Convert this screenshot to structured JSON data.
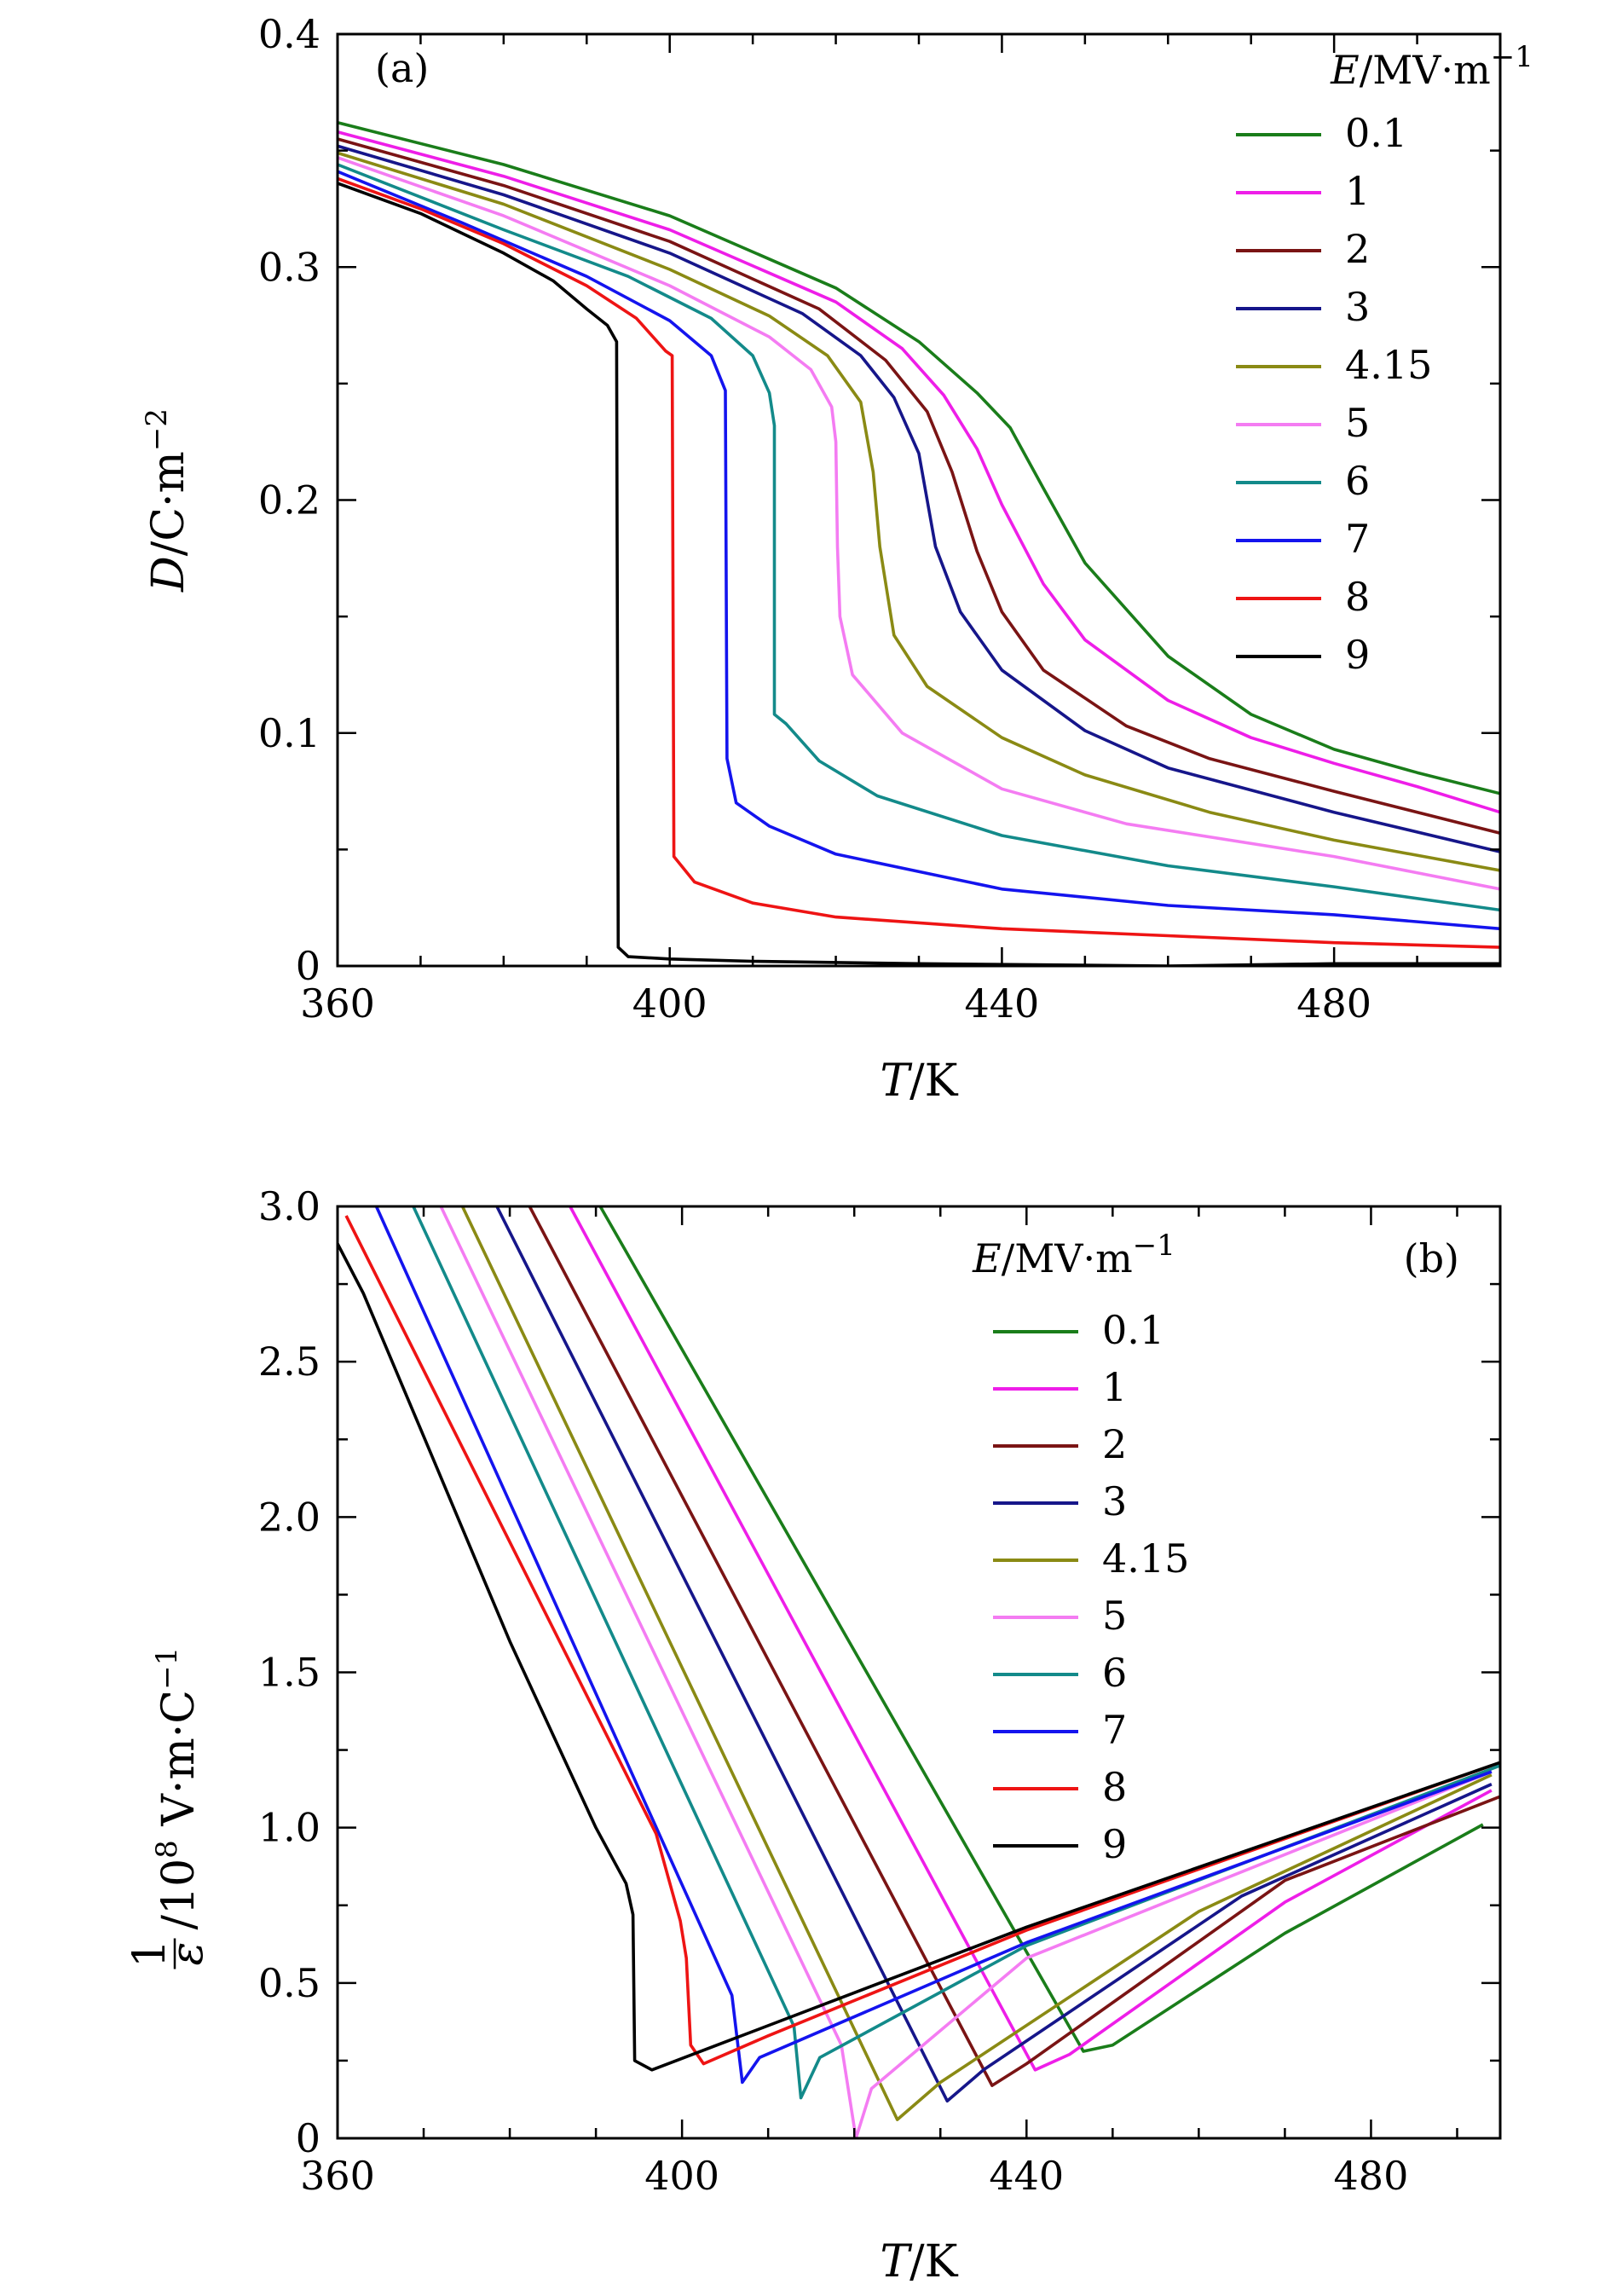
{
  "chart_data": [
    {
      "type": "line",
      "panel_label": "(a)",
      "xlabel": {
        "var": "T",
        "unit": "/K"
      },
      "ylabel": {
        "var": "D",
        "unit": "/C·m",
        "unit_sup": "−2"
      },
      "xlim": [
        360,
        500
      ],
      "ylim": [
        0,
        0.4
      ],
      "xticks": [
        360,
        400,
        440,
        480
      ],
      "yticks": [
        0,
        0.1,
        0.2,
        0.3,
        0.4
      ],
      "xtick_labels": [
        "360",
        "400",
        "440",
        "480"
      ],
      "ytick_labels": [
        "0",
        "0.1",
        "0.2",
        "0.3",
        "0.4"
      ],
      "legend_title": {
        "var": "E",
        "unit": "/MV·m",
        "unit_sup": "−1"
      },
      "legend_position": "top-right",
      "series": [
        {
          "name": "0.1",
          "color": "#1a7d1a",
          "points": [
            [
              360,
              0.362
            ],
            [
              380,
              0.344
            ],
            [
              400,
              0.322
            ],
            [
              420,
              0.291
            ],
            [
              430,
              0.268
            ],
            [
              437,
              0.246
            ],
            [
              441,
              0.231
            ],
            [
              445,
              0.205
            ],
            [
              450,
              0.173
            ],
            [
              460,
              0.133
            ],
            [
              470,
              0.108
            ],
            [
              480,
              0.093
            ],
            [
              490,
              0.083
            ],
            [
              500,
              0.074
            ]
          ]
        },
        {
          "name": "1",
          "color": "#ee1ee8",
          "points": [
            [
              360,
              0.358
            ],
            [
              380,
              0.339
            ],
            [
              400,
              0.316
            ],
            [
              420,
              0.285
            ],
            [
              428,
              0.265
            ],
            [
              433,
              0.245
            ],
            [
              437,
              0.222
            ],
            [
              440,
              0.198
            ],
            [
              445,
              0.164
            ],
            [
              450,
              0.14
            ],
            [
              460,
              0.114
            ],
            [
              470,
              0.098
            ],
            [
              480,
              0.087
            ],
            [
              490,
              0.077
            ],
            [
              500,
              0.066
            ]
          ]
        },
        {
          "name": "2",
          "color": "#7a1414",
          "points": [
            [
              360,
              0.355
            ],
            [
              380,
              0.335
            ],
            [
              400,
              0.311
            ],
            [
              418,
              0.282
            ],
            [
              426,
              0.26
            ],
            [
              431,
              0.238
            ],
            [
              434,
              0.212
            ],
            [
              437,
              0.178
            ],
            [
              440,
              0.152
            ],
            [
              445,
              0.127
            ],
            [
              455,
              0.103
            ],
            [
              465,
              0.089
            ],
            [
              480,
              0.075
            ],
            [
              500,
              0.057
            ]
          ]
        },
        {
          "name": "3",
          "color": "#16168a",
          "points": [
            [
              360,
              0.352
            ],
            [
              380,
              0.331
            ],
            [
              400,
              0.306
            ],
            [
              416,
              0.28
            ],
            [
              423,
              0.262
            ],
            [
              427,
              0.244
            ],
            [
              430,
              0.22
            ],
            [
              432,
              0.18
            ],
            [
              435,
              0.152
            ],
            [
              440,
              0.127
            ],
            [
              450,
              0.101
            ],
            [
              460,
              0.085
            ],
            [
              480,
              0.066
            ],
            [
              500,
              0.049
            ]
          ]
        },
        {
          "name": "4.15",
          "color": "#8a8a14",
          "points": [
            [
              360,
              0.349
            ],
            [
              380,
              0.327
            ],
            [
              400,
              0.299
            ],
            [
              412,
              0.279
            ],
            [
              419,
              0.262
            ],
            [
              423,
              0.242
            ],
            [
              424.5,
              0.212
            ],
            [
              425.3,
              0.18
            ],
            [
              427,
              0.142
            ],
            [
              431,
              0.12
            ],
            [
              440,
              0.098
            ],
            [
              450,
              0.082
            ],
            [
              465,
              0.066
            ],
            [
              480,
              0.054
            ],
            [
              500,
              0.041
            ]
          ]
        },
        {
          "name": "5",
          "color": "#f47cf2",
          "points": [
            [
              360,
              0.347
            ],
            [
              380,
              0.322
            ],
            [
              400,
              0.292
            ],
            [
              412,
              0.27
            ],
            [
              417,
              0.256
            ],
            [
              419.5,
              0.24
            ],
            [
              420,
              0.225
            ],
            [
              420.2,
              0.18
            ],
            [
              420.5,
              0.15
            ],
            [
              422,
              0.125
            ],
            [
              428,
              0.1
            ],
            [
              440,
              0.076
            ],
            [
              455,
              0.061
            ],
            [
              480,
              0.047
            ],
            [
              500,
              0.033
            ]
          ]
        },
        {
          "name": "6",
          "color": "#138a8a",
          "points": [
            [
              360,
              0.344
            ],
            [
              380,
              0.316
            ],
            [
              395,
              0.296
            ],
            [
              405,
              0.278
            ],
            [
              410,
              0.262
            ],
            [
              412,
              0.246
            ],
            [
              412.6,
              0.232
            ],
            [
              412.6,
              0.108
            ],
            [
              414,
              0.104
            ],
            [
              418,
              0.088
            ],
            [
              425,
              0.073
            ],
            [
              440,
              0.056
            ],
            [
              460,
              0.043
            ],
            [
              480,
              0.034
            ],
            [
              500,
              0.024
            ]
          ]
        },
        {
          "name": "7",
          "color": "#1414ee",
          "points": [
            [
              360,
              0.341
            ],
            [
              375,
              0.319
            ],
            [
              390,
              0.296
            ],
            [
              400,
              0.277
            ],
            [
              405,
              0.262
            ],
            [
              406.7,
              0.247
            ],
            [
              406.9,
              0.089
            ],
            [
              408,
              0.07
            ],
            [
              412,
              0.06
            ],
            [
              420,
              0.048
            ],
            [
              440,
              0.033
            ],
            [
              460,
              0.026
            ],
            [
              480,
              0.022
            ],
            [
              500,
              0.016
            ]
          ]
        },
        {
          "name": "8",
          "color": "#ee1414",
          "points": [
            [
              360,
              0.338
            ],
            [
              370,
              0.325
            ],
            [
              380,
              0.31
            ],
            [
              390,
              0.292
            ],
            [
              396,
              0.278
            ],
            [
              399.5,
              0.264
            ],
            [
              400.3,
              0.262
            ],
            [
              400.5,
              0.047
            ],
            [
              403,
              0.036
            ],
            [
              410,
              0.027
            ],
            [
              420,
              0.021
            ],
            [
              440,
              0.016
            ],
            [
              460,
              0.013
            ],
            [
              480,
              0.01
            ],
            [
              500,
              0.008
            ]
          ]
        },
        {
          "name": "9",
          "color": "#000000",
          "points": [
            [
              360,
              0.336
            ],
            [
              370,
              0.323
            ],
            [
              380,
              0.306
            ],
            [
              386,
              0.294
            ],
            [
              390,
              0.282
            ],
            [
              392.5,
              0.275
            ],
            [
              393.6,
              0.268
            ],
            [
              393.8,
              0.008
            ],
            [
              395,
              0.004
            ],
            [
              400,
              0.003
            ],
            [
              410,
              0.002
            ],
            [
              430,
              0.001
            ],
            [
              460,
              0.0
            ],
            [
              480,
              0.001
            ],
            [
              500,
              0.001
            ]
          ]
        }
      ]
    },
    {
      "type": "line",
      "panel_label": "(b)",
      "xlabel": {
        "var": "T",
        "unit": "/K"
      },
      "ylabel": {
        "frac_num": "1",
        "frac_den": "ε",
        "unit": "/10",
        "unit_sup": "8",
        "unit_rest": " V·m·C",
        "unit_sup2": "−1"
      },
      "xlim": [
        360,
        495
      ],
      "ylim": [
        0,
        3.0
      ],
      "xticks": [
        360,
        400,
        440,
        480
      ],
      "yticks": [
        0,
        0.5,
        1.0,
        1.5,
        2.0,
        2.5,
        3.0
      ],
      "xtick_labels": [
        "360",
        "400",
        "440",
        "480"
      ],
      "ytick_labels": [
        "0",
        "0.5",
        "1.0",
        "1.5",
        "2.0",
        "2.5",
        "3.0"
      ],
      "legend_title": {
        "var": "E",
        "unit": "/MV·m",
        "unit_sup": "−1"
      },
      "legend_position": "top-right",
      "series": [
        {
          "name": "0.1",
          "color": "#1a7d1a",
          "points": [
            [
              390.5,
              3.0
            ],
            [
              446.6,
              0.28
            ],
            [
              450,
              0.3
            ],
            [
              470,
              0.66
            ],
            [
              493,
              1.01
            ]
          ]
        },
        {
          "name": "1",
          "color": "#ee1ee8",
          "points": [
            [
              387.0,
              3.0
            ],
            [
              441.0,
              0.22
            ],
            [
              445,
              0.27
            ],
            [
              470,
              0.76
            ],
            [
              494,
              1.12
            ]
          ]
        },
        {
          "name": "2",
          "color": "#7a1414",
          "points": [
            [
              382.3,
              3.0
            ],
            [
              436.0,
              0.17
            ],
            [
              440,
              0.24
            ],
            [
              470,
              0.83
            ],
            [
              495,
              1.1
            ]
          ]
        },
        {
          "name": "3",
          "color": "#16168a",
          "points": [
            [
              378.5,
              3.0
            ],
            [
              430.8,
              0.12
            ],
            [
              435,
              0.22
            ],
            [
              465,
              0.78
            ],
            [
              494,
              1.14
            ]
          ]
        },
        {
          "name": "4.15",
          "color": "#8a8a14",
          "points": [
            [
              374.5,
              3.0
            ],
            [
              425.0,
              0.06
            ],
            [
              430,
              0.18
            ],
            [
              460,
              0.73
            ],
            [
              494,
              1.17
            ]
          ]
        },
        {
          "name": "5",
          "color": "#f47cf2",
          "points": [
            [
              372.0,
              3.0
            ],
            [
              418.5,
              0.3
            ],
            [
              420.2,
              0.0
            ],
            [
              422,
              0.16
            ],
            [
              440,
              0.58
            ],
            [
              494,
              1.18
            ]
          ]
        },
        {
          "name": "6",
          "color": "#138a8a",
          "points": [
            [
              368.8,
              3.0
            ],
            [
              413.0,
              0.36
            ],
            [
              413.8,
              0.13
            ],
            [
              416,
              0.26
            ],
            [
              440,
              0.62
            ],
            [
              495,
              1.2
            ]
          ]
        },
        {
          "name": "7",
          "color": "#1414ee",
          "points": [
            [
              364.5,
              3.0
            ],
            [
              405.8,
              0.46
            ],
            [
              407.0,
              0.18
            ],
            [
              409,
              0.26
            ],
            [
              440,
              0.63
            ],
            [
              494,
              1.18
            ]
          ]
        },
        {
          "name": "8",
          "color": "#ee1414",
          "points": [
            [
              361.0,
              2.97
            ],
            [
              397,
              0.98
            ],
            [
              399.8,
              0.7
            ],
            [
              400.5,
              0.58
            ],
            [
              401,
              0.3
            ],
            [
              402.5,
              0.24
            ],
            [
              410,
              0.33
            ],
            [
              440,
              0.67
            ],
            [
              494,
              1.2
            ]
          ]
        },
        {
          "name": "9",
          "color": "#000000",
          "points": [
            [
              360,
              2.88
            ],
            [
              363,
              2.72
            ],
            [
              370,
              2.26
            ],
            [
              380,
              1.6
            ],
            [
              390,
              1.0
            ],
            [
              393.5,
              0.82
            ],
            [
              394.3,
              0.72
            ],
            [
              394.5,
              0.25
            ],
            [
              396.5,
              0.22
            ],
            [
              405,
              0.31
            ],
            [
              440,
              0.68
            ],
            [
              495,
              1.21
            ]
          ]
        }
      ]
    }
  ]
}
